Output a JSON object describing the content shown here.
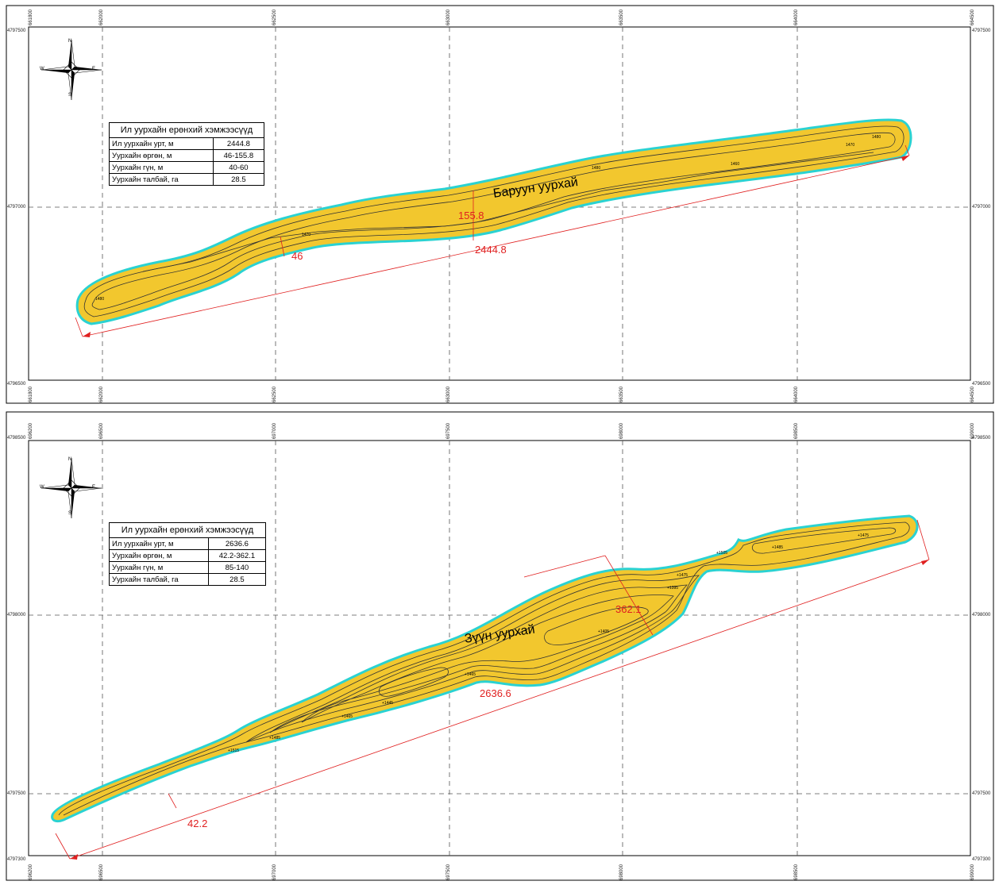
{
  "maps": [
    {
      "id": "west",
      "pit_label": "Баруун уурхай",
      "table": {
        "title": "Ил уурхайн ерөнхий хэмжээсүүд",
        "rows": [
          {
            "label": "Ил уурхайн урт, м",
            "value": "2444.8"
          },
          {
            "label": "Уурхайн өргөн, м",
            "value": "46-155.8"
          },
          {
            "label": "Уурхайн гүн, м",
            "value": "40-60"
          },
          {
            "label": "Уурхайн талбай, га",
            "value": "28.5"
          }
        ]
      },
      "dims": {
        "length": "2444.8",
        "width_max": "155.8",
        "width_min": "46"
      },
      "x_ticks": [
        "661800",
        "662000",
        "662500",
        "663000",
        "663500",
        "664000",
        "664500"
      ],
      "y_ticks": [
        "4797500",
        "4797000",
        "4796500"
      ],
      "elevations": [
        "1480",
        "1470",
        "1460",
        "1480",
        "1470",
        "1480"
      ]
    },
    {
      "id": "east",
      "pit_label": "Зүүн уурхай",
      "table": {
        "title": "Ил уурхайн ерөнхий хэмжээсүүд",
        "rows": [
          {
            "label": "Ил уурхайн урт, м",
            "value": "2636.6"
          },
          {
            "label": "Уурхайн өргөн, м",
            "value": "42.2-362.1"
          },
          {
            "label": "Уурхайн гүн, м",
            "value": "85-140"
          },
          {
            "label": "Уурхайн талбай, га",
            "value": "28.5"
          }
        ]
      },
      "dims": {
        "length": "2636.6",
        "width_max": "362.1",
        "width_min": "42.2"
      },
      "x_ticks": [
        "696200",
        "696500",
        "697000",
        "697500",
        "698000",
        "698500",
        "699000"
      ],
      "y_ticks": [
        "4798500",
        "4798000",
        "4797500",
        "4797300"
      ],
      "elevations": [
        "+1515",
        "+1485",
        "+1465",
        "+1445",
        "+1465",
        "+1405",
        "+1395",
        "+1475",
        "+1505",
        "+1485",
        "+1475"
      ]
    }
  ],
  "compass": {
    "n": "N",
    "s": "S",
    "e": "E",
    "w": "W"
  },
  "colors": {
    "pit_fill": "#f2c72e",
    "outline": "#2ad2d2",
    "dimension": "#e02020",
    "grid": "#555555"
  }
}
